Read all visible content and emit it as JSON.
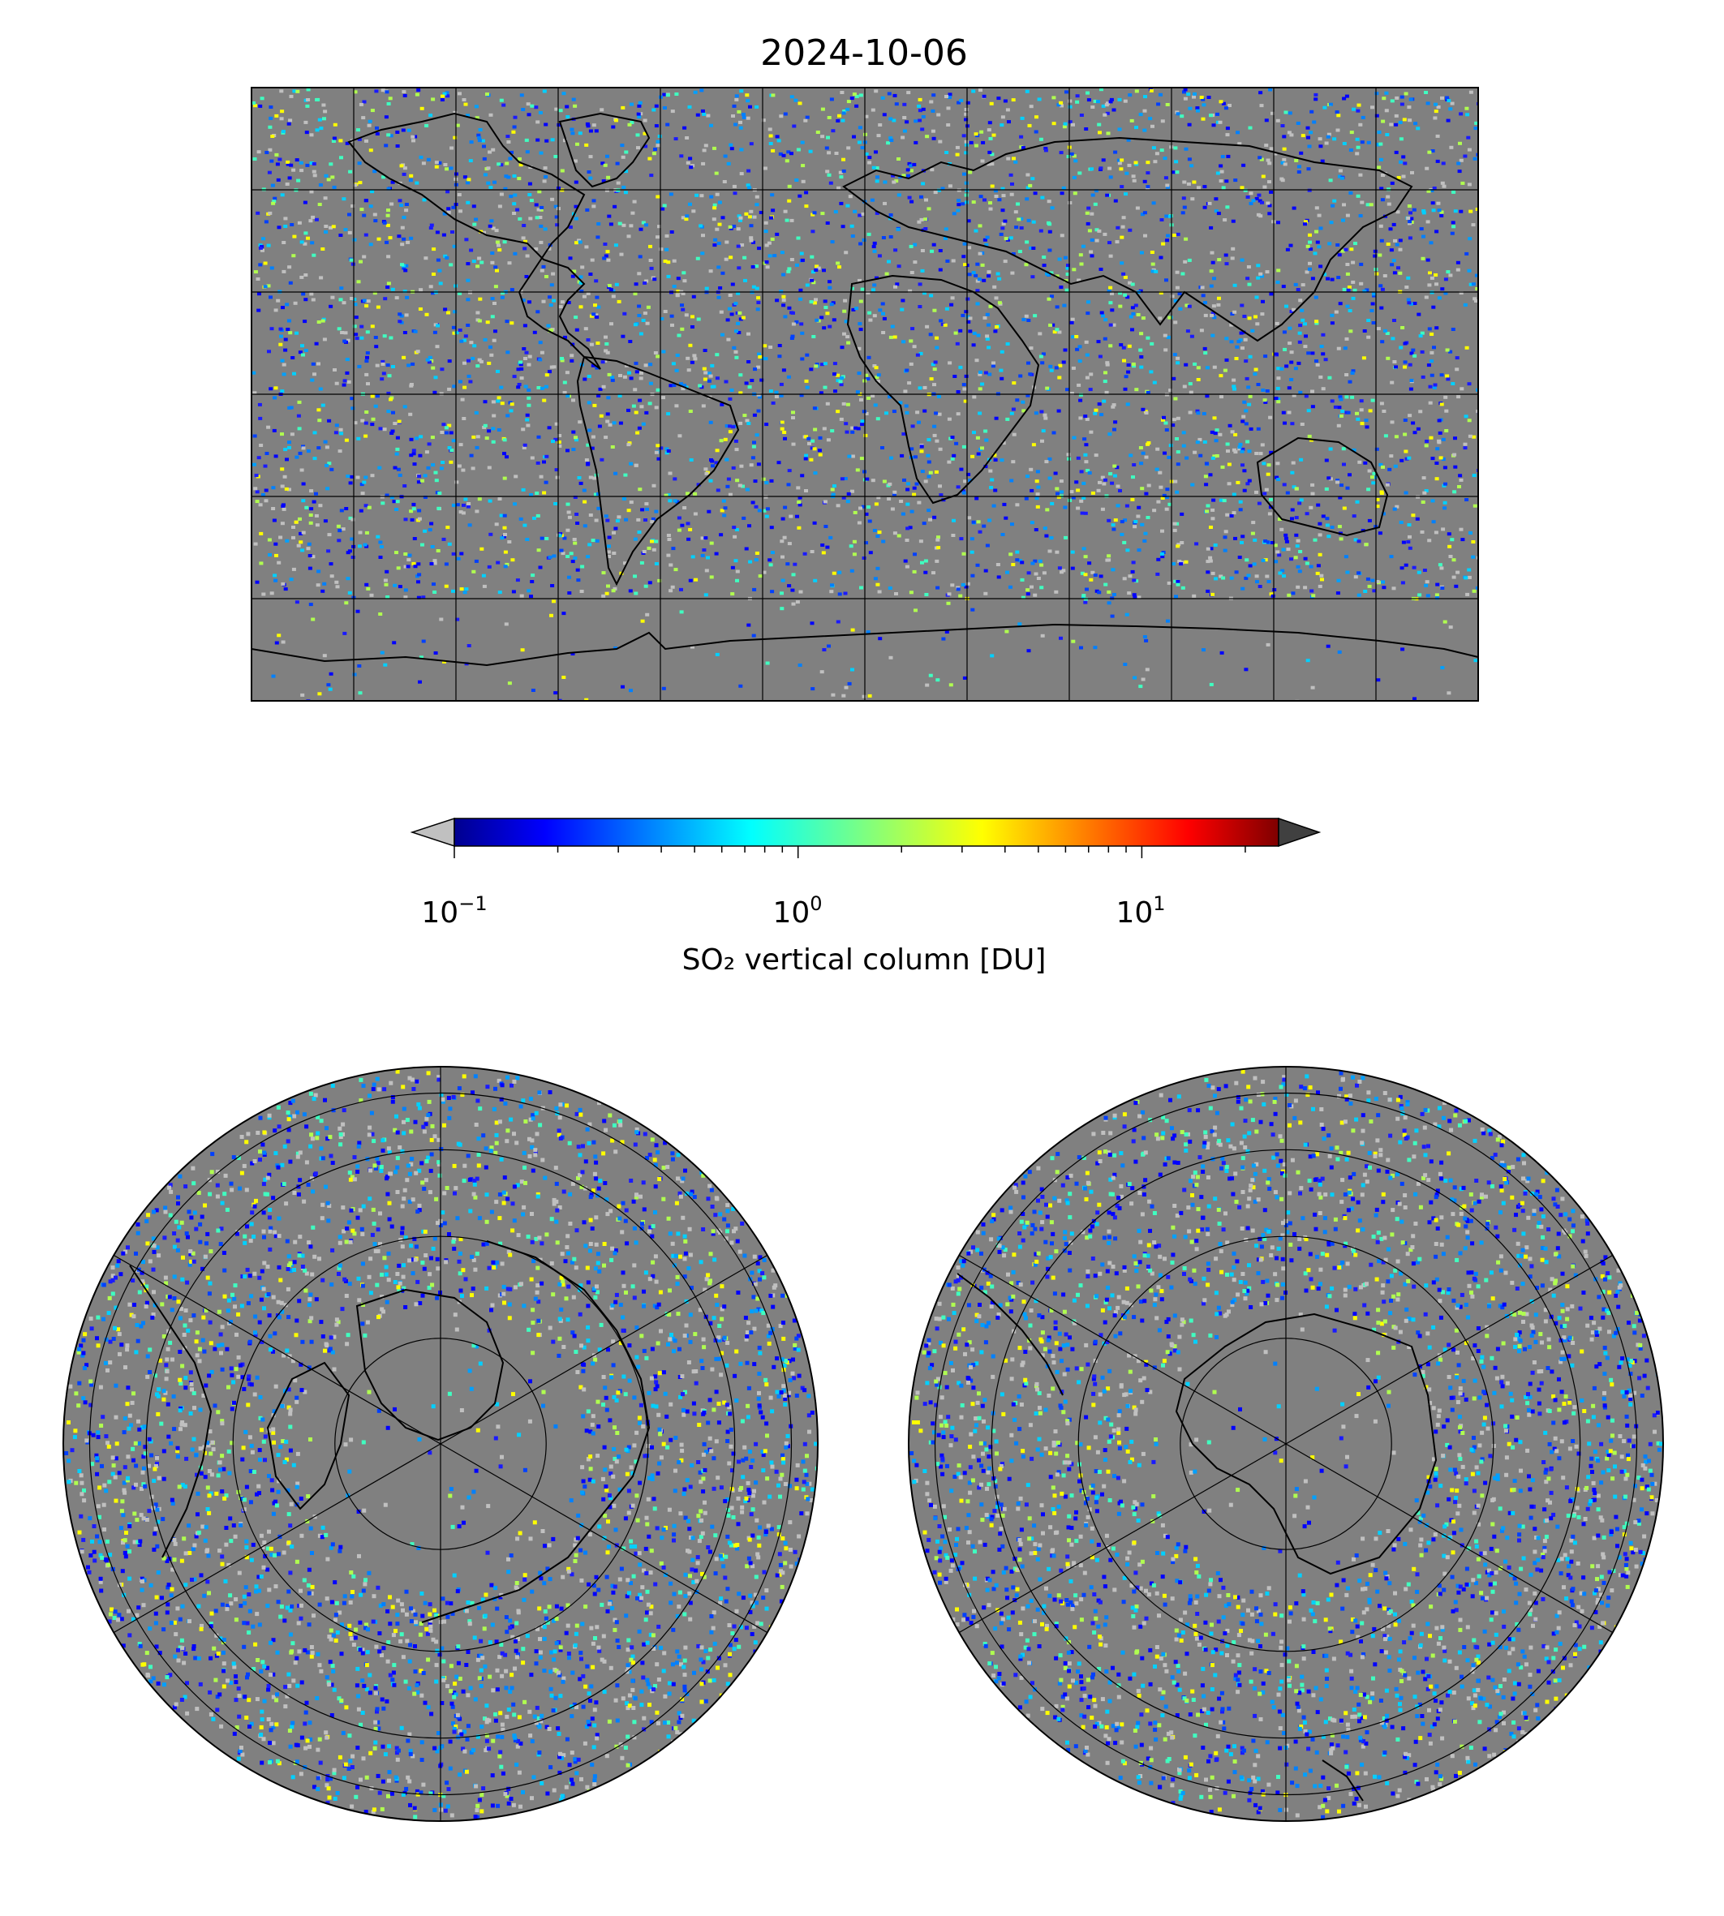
{
  "title": "2024-10-06",
  "colorbar": {
    "label": "SO₂ vertical column [DU]",
    "scale": "log",
    "range": [
      0.1,
      25
    ],
    "extend": "both",
    "under_color": "#c0c0c0",
    "over_color": "#404040",
    "colormap": "jet",
    "ticks": [
      {
        "value": 0.1,
        "base": "10",
        "exp": "−1"
      },
      {
        "value": 1,
        "base": "10",
        "exp": "0"
      },
      {
        "value": 10,
        "base": "10",
        "exp": "1"
      }
    ]
  },
  "colors": {
    "no_data": "#808080",
    "below_range": "#c0c0c0",
    "coastline": "#000000",
    "gridline": "#000000"
  },
  "maps": [
    {
      "name": "global",
      "projection": "plate-carree",
      "gridlines_lon_step_deg": 30,
      "gridlines_lat_step_deg": 30
    },
    {
      "name": "north-polar",
      "projection": "north-polar-stereographic",
      "parallels_deg": [
        30,
        45,
        60,
        75
      ],
      "meridians_step_deg": 60
    },
    {
      "name": "south-polar",
      "projection": "south-polar-stereographic",
      "parallels_deg": [
        -30,
        -45,
        -60,
        -75
      ],
      "meridians_step_deg": 60
    }
  ]
}
